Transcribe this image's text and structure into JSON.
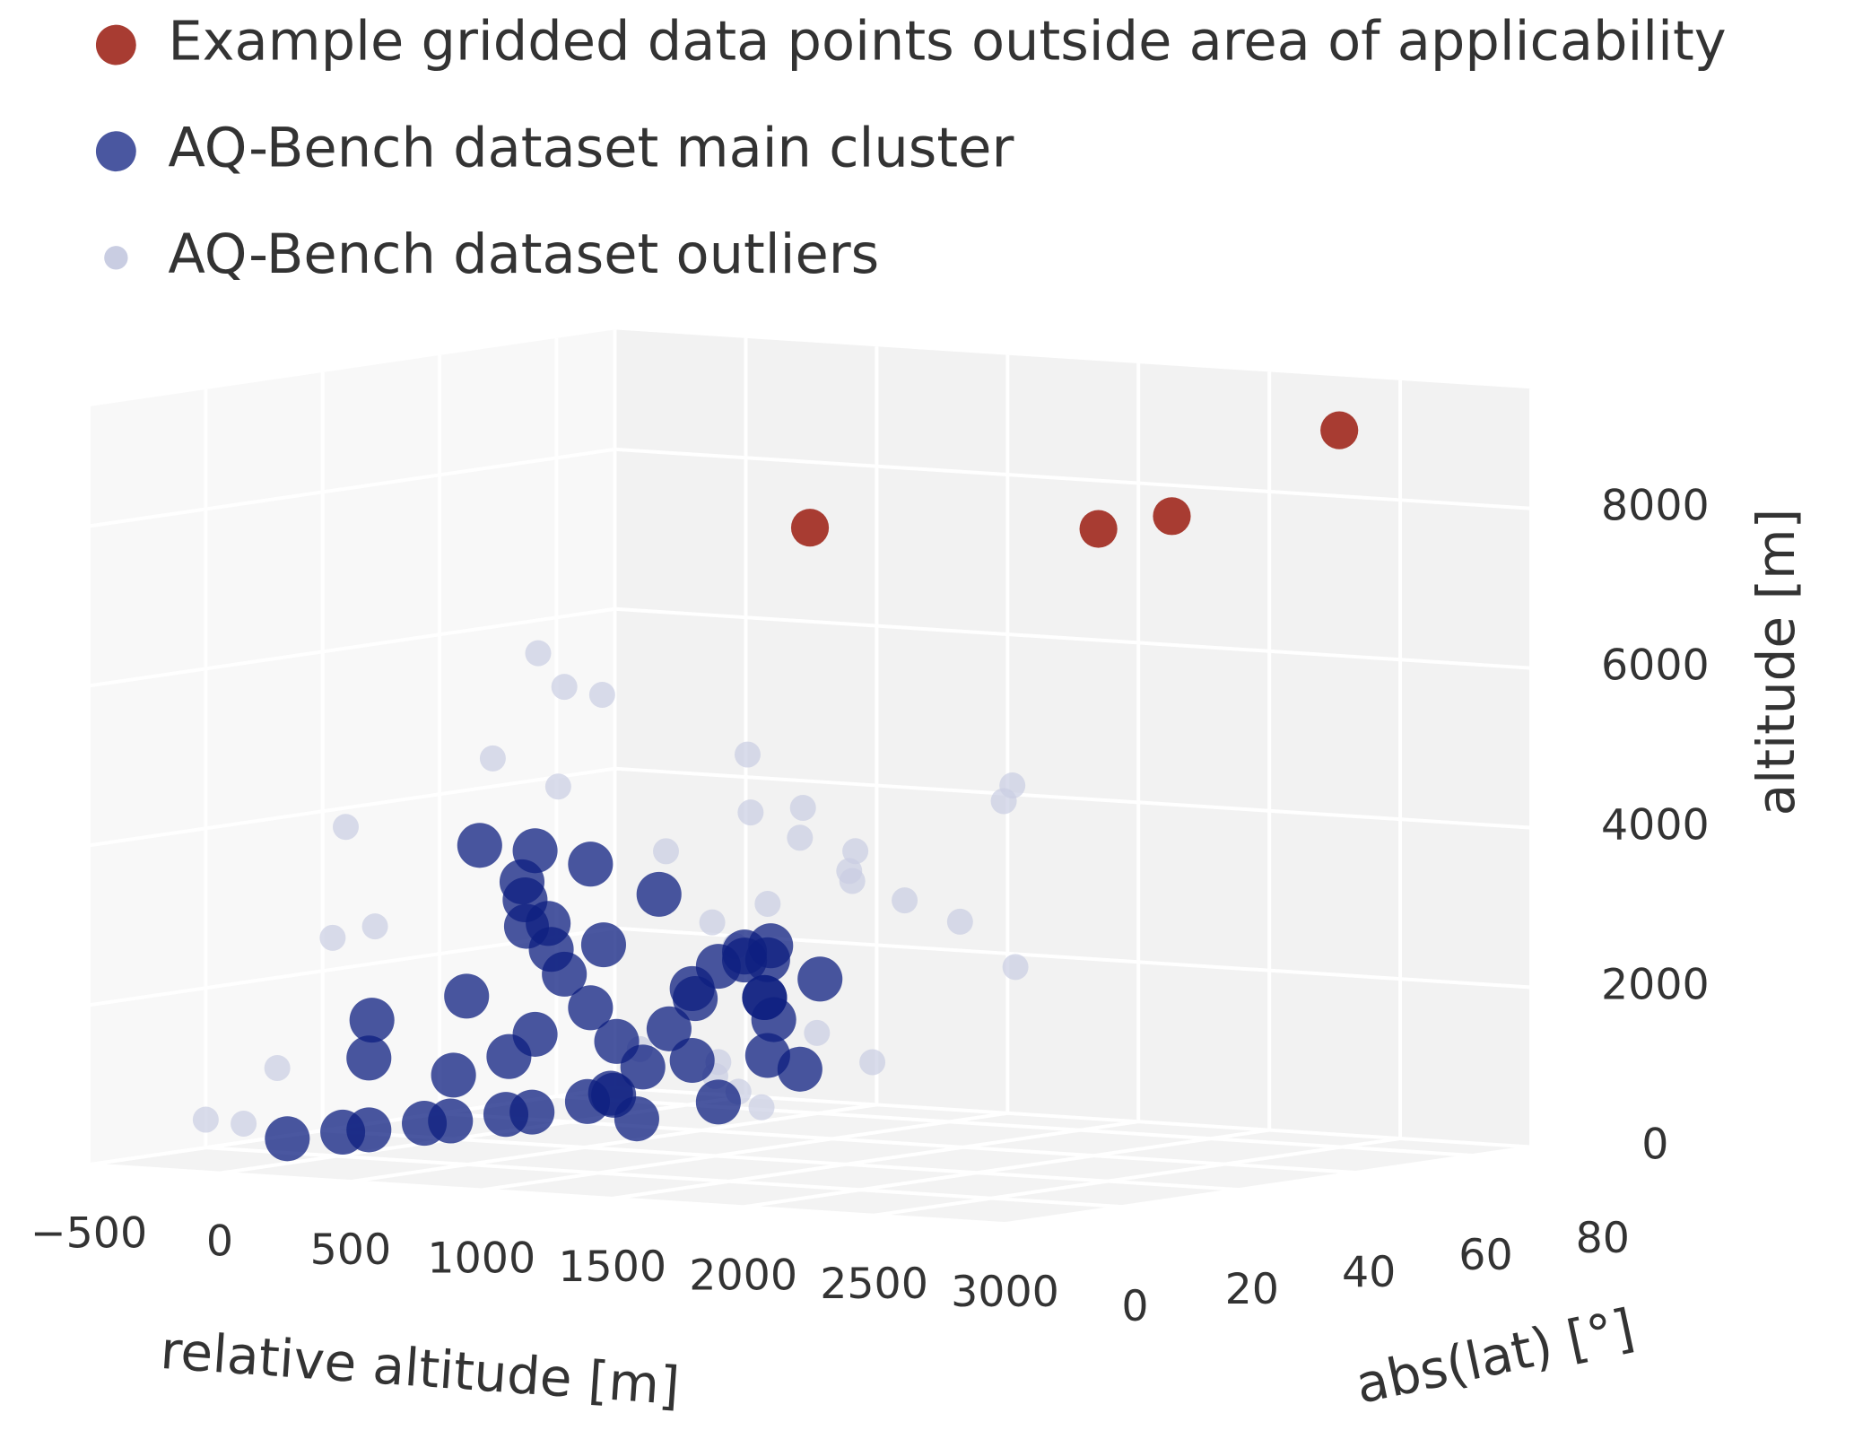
{
  "chart_data": {
    "type": "scatter3d",
    "xlabel": "relative altitude [m]",
    "ylabel": "abs(lat) [°]",
    "zlabel": "altitude [m]",
    "xlim": [
      -500,
      3000
    ],
    "ylim": [
      0,
      90
    ],
    "zlim": [
      0,
      9500
    ],
    "xticks": [
      {
        "value": -500,
        "label": "−500"
      },
      0,
      500,
      1000,
      1500,
      2000,
      2500,
      3000
    ],
    "yticks": [
      0,
      20,
      40,
      60,
      80
    ],
    "zticks": [
      0,
      2000,
      4000,
      6000,
      8000
    ],
    "grid": true,
    "legend": "top-left",
    "series": [
      {
        "name": "AQ-Bench dataset outliers",
        "color": "#c9cde2",
        "x": [
          100,
          200,
          300,
          150,
          -300,
          900,
          800,
          1000,
          1100,
          700,
          1200,
          1300,
          1800,
          1700,
          1600,
          1500,
          1400,
          1200,
          1100,
          1300,
          1500,
          1600,
          -500,
          -400,
          -450,
          -350,
          -300,
          900,
          1000,
          1200,
          1400,
          1700,
          600,
          400
        ],
        "y": [
          50,
          50,
          52,
          40,
          35,
          50,
          55,
          55,
          50,
          45,
          55,
          50,
          55,
          58,
          55,
          50,
          45,
          40,
          35,
          30,
          35,
          40,
          20,
          22,
          30,
          35,
          40,
          45,
          40,
          35,
          30,
          60,
          45,
          40
        ],
        "z": [
          6000,
          5600,
          5500,
          4800,
          3900,
          4900,
          4100,
          4200,
          3900,
          3700,
          3700,
          3400,
          4650,
          4400,
          2900,
          3200,
          3600,
          3200,
          3000,
          2800,
          1700,
          1300,
          350,
          300,
          900,
          2500,
          2600,
          1100,
          1000,
          900,
          800,
          2300,
          1200,
          4500
        ]
      },
      {
        "name": "AQ-Bench dataset main cluster",
        "color": "#0d1f80",
        "x": [
          -300,
          -200,
          -100,
          0,
          100,
          200,
          300,
          400,
          500,
          0,
          100,
          200,
          300,
          200,
          150,
          100,
          50,
          250,
          150,
          300,
          200,
          100,
          400,
          500,
          600,
          700,
          800,
          900,
          1000,
          1100,
          1200,
          1400,
          1300,
          1000,
          800,
          600,
          700,
          900,
          -200,
          -100,
          1100,
          50,
          350,
          450,
          1200,
          1000,
          1300
        ],
        "y": [
          25,
          30,
          30,
          35,
          35,
          40,
          40,
          45,
          45,
          40,
          45,
          45,
          50,
          50,
          50,
          48,
          50,
          45,
          45,
          50,
          45,
          40,
          50,
          50,
          50,
          50,
          45,
          45,
          45,
          45,
          40,
          40,
          35,
          50,
          45,
          40,
          40,
          45,
          35,
          30,
          50,
          40,
          50,
          55,
          40,
          45,
          35
        ],
        "z": [
          100,
          150,
          200,
          250,
          300,
          350,
          400,
          500,
          600,
          800,
          1000,
          1300,
          1600,
          2000,
          2300,
          2600,
          2900,
          2700,
          3200,
          3400,
          3600,
          3700,
          1200,
          900,
          1400,
          1800,
          2000,
          2300,
          2500,
          2600,
          2500,
          2300,
          2100,
          1600,
          1100,
          700,
          400,
          600,
          1500,
          1100,
          1000,
          1800,
          2400,
          3000,
          1300,
          2400,
          2100
        ]
      },
      {
        "name": "Example gridded data points outside area of applicability",
        "color": "#a83c32",
        "x": [
          1250,
          1950,
          2130,
          2580
        ],
        "y": [
          45,
          63,
          67.5,
          76
        ],
        "z": [
          7870,
          7810,
          7960,
          9040
        ]
      }
    ]
  }
}
